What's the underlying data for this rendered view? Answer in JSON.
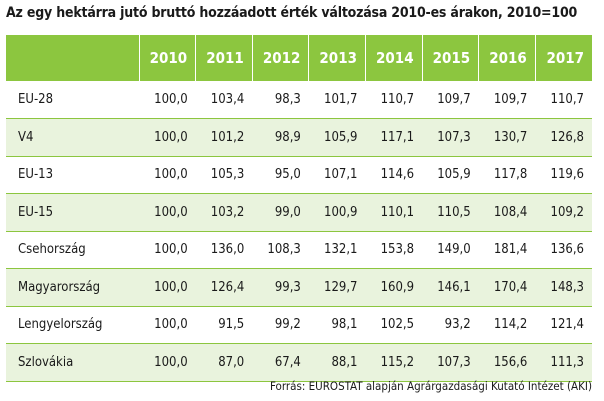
{
  "title": "Az egy hektárra jutó bruttó hozzáadott érték változása 2010-es árakon, 2010=100",
  "header": {
    "label": "",
    "years": [
      "2010",
      "2011",
      "2012",
      "2013",
      "2014",
      "2015",
      "2016",
      "2017"
    ]
  },
  "rows": [
    {
      "label": "EU-28",
      "values": [
        "100,0",
        "103,4",
        "98,3",
        "101,7",
        "110,7",
        "109,7",
        "109,7",
        "110,7"
      ]
    },
    {
      "label": "V4",
      "values": [
        "100,0",
        "101,2",
        "98,9",
        "105,9",
        "117,1",
        "107,3",
        "130,7",
        "126,8"
      ]
    },
    {
      "label": "EU-13",
      "values": [
        "100,0",
        "105,3",
        "95,0",
        "107,1",
        "114,6",
        "105,9",
        "117,8",
        "119,6"
      ]
    },
    {
      "label": "EU-15",
      "values": [
        "100,0",
        "103,2",
        "99,0",
        "100,9",
        "110,1",
        "110,5",
        "108,4",
        "109,2"
      ]
    },
    {
      "label": "Csehország",
      "values": [
        "100,0",
        "136,0",
        "108,3",
        "132,1",
        "153,8",
        "149,0",
        "181,4",
        "136,6"
      ]
    },
    {
      "label": "Magyarország",
      "values": [
        "100,0",
        "126,4",
        "99,3",
        "129,7",
        "160,9",
        "146,1",
        "170,4",
        "148,3"
      ]
    },
    {
      "label": "Lengyelország",
      "values": [
        "100,0",
        "91,5",
        "99,2",
        "98,1",
        "102,5",
        "93,2",
        "114,2",
        "121,4"
      ]
    },
    {
      "label": "Szlovákia",
      "values": [
        "100,0",
        "87,0",
        "67,4",
        "88,1",
        "115,2",
        "107,3",
        "156,6",
        "111,3"
      ]
    }
  ],
  "source": "Forrás: EUROSTAT alapján Agrárgazdasági Kutató Intézet (AKI)",
  "colors": {
    "header_bg": "#8cc63f",
    "stripe_bg": "#e9f3dd",
    "rule": "#8cc63f"
  }
}
